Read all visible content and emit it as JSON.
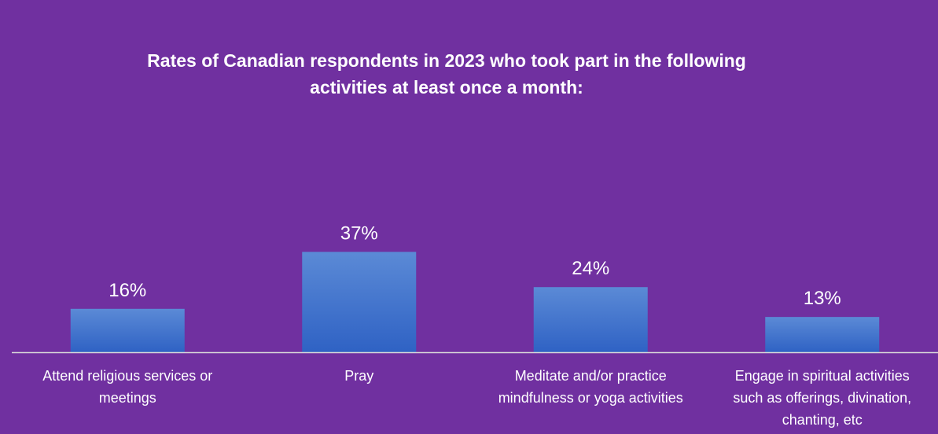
{
  "chart_data": {
    "type": "bar",
    "title_lines": [
      "Rates of Canadian respondents in 2023 who took part in the following",
      "activities at least once a month:"
    ],
    "categories": [
      [
        "Attend religious services or",
        "meetings"
      ],
      [
        "Pray"
      ],
      [
        "Meditate and/or practice",
        "mindfulness or yoga activities"
      ],
      [
        "Engage in spiritual activities",
        "such as offerings, divination,",
        "chanting, etc"
      ]
    ],
    "values": [
      16,
      37,
      24,
      13
    ],
    "data_labels": [
      "16%",
      "37%",
      "24%",
      "13%"
    ],
    "ylim": [
      0,
      100
    ],
    "grid": false,
    "legend": "none",
    "colors": {
      "background": "#7030a0",
      "bar_top": "#5b8ad6",
      "bar_bottom": "#2f62c4",
      "text": "#ffffff",
      "axis": "#d9d9d9"
    }
  }
}
